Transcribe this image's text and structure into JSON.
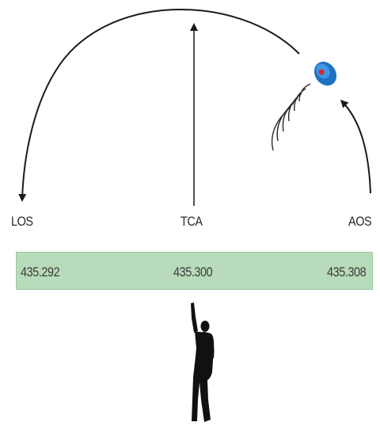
{
  "pass_points": [
    {
      "label": "LOS",
      "frequency": "435.292"
    },
    {
      "label": "TCA",
      "frequency": "435.300"
    },
    {
      "label": "AOS",
      "frequency": "435.308"
    }
  ],
  "colors": {
    "frequency_bar": "#b8dbbb",
    "satellite": "#1d72c4",
    "satellite_dot": "#e0242b",
    "figure": "#111111",
    "lines": "#1a1a1a"
  },
  "icons": {
    "satellite": "satellite-icon",
    "observer": "person-pointing-icon"
  }
}
